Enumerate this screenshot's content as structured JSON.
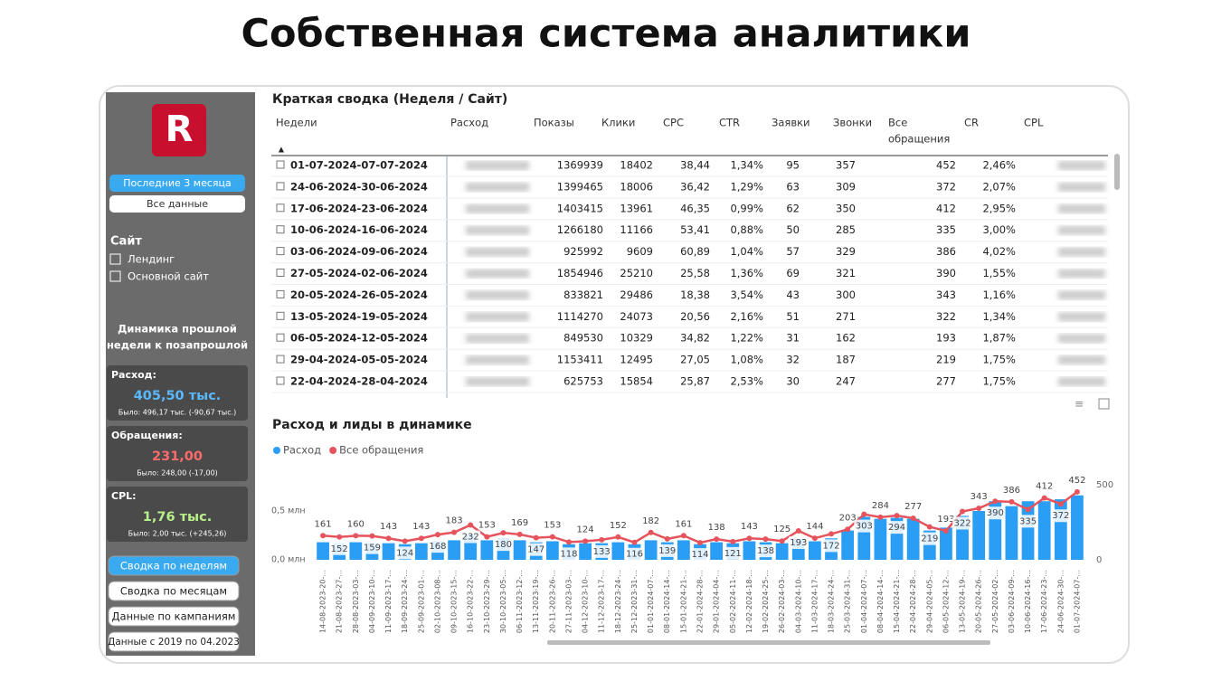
{
  "title": "Собственная система аналитики",
  "sidebar": {
    "logo": "R",
    "period_buttons": [
      "Последние 3 месяца",
      "Все данные"
    ],
    "site_heading": "Сайт",
    "site_options": [
      "Лендинг",
      "Основной сайт"
    ],
    "dynamics_heading": [
      "Динамика прошлой",
      "недели к позапрошлой"
    ],
    "cards": [
      {
        "label": "Расход:",
        "value": "405,50 тыс.",
        "note": "Было: 496,17 тыс. (-90,67 тыс.)",
        "color": "#5ab8ff"
      },
      {
        "label": "Обращения:",
        "value": "231,00",
        "note": "Было: 248,00 (-17,00)",
        "color": "#ff6b6b"
      },
      {
        "label": "CPL:",
        "value": "1,76 тыс.",
        "note": "Было: 2,00 тыс. (+245,26)",
        "color": "#b8f08a"
      }
    ],
    "nav_buttons": [
      "Сводка по неделям",
      "Сводка по месяцам",
      "Данные по кампаниям",
      "Данные с 2019 по 04.2023"
    ]
  },
  "table": {
    "title": "Краткая сводка (Неделя / Сайт)",
    "columns": [
      "Недели",
      "Расход",
      "Показы",
      "Клики",
      "CPC",
      "CTR",
      "Заявки",
      "Звонки",
      [
        "Все",
        "обращения"
      ],
      "CR",
      "CPL"
    ],
    "rows": [
      [
        "01-07-2024-07-07-2024",
        "1369939",
        "18402",
        "38,44",
        "1,34%",
        "95",
        "357",
        "452",
        "2,46%"
      ],
      [
        "24-06-2024-30-06-2024",
        "1399465",
        "18006",
        "36,42",
        "1,29%",
        "63",
        "309",
        "372",
        "2,07%"
      ],
      [
        "17-06-2024-23-06-2024",
        "1403415",
        "13961",
        "46,35",
        "0,99%",
        "62",
        "350",
        "412",
        "2,95%"
      ],
      [
        "10-06-2024-16-06-2024",
        "1266180",
        "11166",
        "53,41",
        "0,88%",
        "50",
        "285",
        "335",
        "3,00%"
      ],
      [
        "03-06-2024-09-06-2024",
        "925992",
        "9609",
        "60,89",
        "1,04%",
        "57",
        "329",
        "386",
        "4,02%"
      ],
      [
        "27-05-2024-02-06-2024",
        "1854946",
        "25210",
        "25,58",
        "1,36%",
        "69",
        "321",
        "390",
        "1,55%"
      ],
      [
        "20-05-2024-26-05-2024",
        "833821",
        "29486",
        "18,38",
        "3,54%",
        "43",
        "300",
        "343",
        "1,16%"
      ],
      [
        "13-05-2024-19-05-2024",
        "1114270",
        "24073",
        "20,56",
        "2,16%",
        "51",
        "271",
        "322",
        "1,34%"
      ],
      [
        "06-05-2024-12-05-2024",
        "849530",
        "10329",
        "34,82",
        "1,22%",
        "31",
        "162",
        "193",
        "1,87%"
      ],
      [
        "29-04-2024-05-05-2024",
        "1153411",
        "12495",
        "27,05",
        "1,08%",
        "32",
        "187",
        "219",
        "1,75%"
      ],
      [
        "22-04-2024-28-04-2024",
        "625753",
        "15854",
        "25,87",
        "2,53%",
        "30",
        "247",
        "277",
        "1,75%"
      ]
    ]
  },
  "chart_data": {
    "type": "combo",
    "title": "Расход и лиды в динамике",
    "categories": [
      "14-08-2023-20-...",
      "21-08-2023-27-...",
      "28-08-2023-03-...",
      "04-09-2023-10-...",
      "11-09-2023-17-...",
      "18-09-2023-24-...",
      "25-09-2023-01-...",
      "02-10-2023-08-...",
      "09-10-2023-15-...",
      "16-10-2023-22-...",
      "23-10-2023-29-...",
      "30-10-2023-05-...",
      "06-11-2023-12-...",
      "13-11-2023-19-...",
      "20-11-2023-26-...",
      "27-11-2023-03-...",
      "04-12-2023-10-...",
      "11-12-2023-17-...",
      "18-12-2023-24-...",
      "25-12-2023-31-...",
      "01-01-2024-07-...",
      "08-01-2024-14-...",
      "15-01-2024-21-...",
      "22-01-2024-28-...",
      "29-01-2024-04-...",
      "05-02-2024-11-...",
      "12-02-2024-18-...",
      "19-02-2024-25-...",
      "26-02-2024-03-...",
      "04-03-2024-10-...",
      "11-03-2024-17-...",
      "18-03-2024-24-...",
      "25-03-2024-31-...",
      "01-04-2024-07-...",
      "08-04-2024-14-...",
      "15-04-2024-21-...",
      "22-04-2024-28-...",
      "29-04-2024-05-...",
      "06-05-2024-12-...",
      "13-05-2024-19-...",
      "20-05-2024-26-...",
      "27-05-2024-02-...",
      "03-06-2024-09-...",
      "10-06-2024-16-...",
      "17-06-2024-23-...",
      "24-06-2024-30-...",
      "01-07-2024-07-..."
    ],
    "series": [
      {
        "name": "Расход",
        "color": "#2a9df4",
        "type": "bar",
        "values": [
          0.18,
          0.17,
          0.18,
          0.17,
          0.17,
          0.16,
          0.17,
          0.19,
          0.2,
          0.26,
          0.2,
          0.22,
          0.2,
          0.18,
          0.19,
          0.16,
          0.17,
          0.17,
          0.18,
          0.16,
          0.2,
          0.18,
          0.2,
          0.16,
          0.18,
          0.17,
          0.19,
          0.18,
          0.17,
          0.22,
          0.19,
          0.22,
          0.3,
          0.44,
          0.42,
          0.43,
          0.42,
          0.3,
          0.33,
          0.45,
          0.5,
          0.6,
          0.55,
          0.6,
          0.6,
          0.62,
          0.66
        ]
      },
      {
        "name": "Все обращения",
        "color": "#e5535c",
        "type": "line",
        "axis": "y2",
        "values": [
          161,
          152,
          160,
          159,
          143,
          124,
          143,
          168,
          183,
          232,
          153,
          180,
          169,
          147,
          153,
          118,
          124,
          133,
          152,
          116,
          182,
          139,
          161,
          114,
          138,
          121,
          143,
          138,
          125,
          193,
          144,
          172,
          203,
          303,
          284,
          294,
          277,
          219,
          193,
          322,
          343,
          390,
          386,
          335,
          412,
          372,
          452
        ]
      }
    ],
    "ylim": [
      0,
      0.917
    ],
    "yticks": [
      {
        "value": 0,
        "label": "0,0 млн"
      },
      {
        "value": 0.5,
        "label": "0,5 млн"
      }
    ],
    "y2lim": [
      0,
      596
    ],
    "y2ticks": [
      0,
      500
    ]
  }
}
